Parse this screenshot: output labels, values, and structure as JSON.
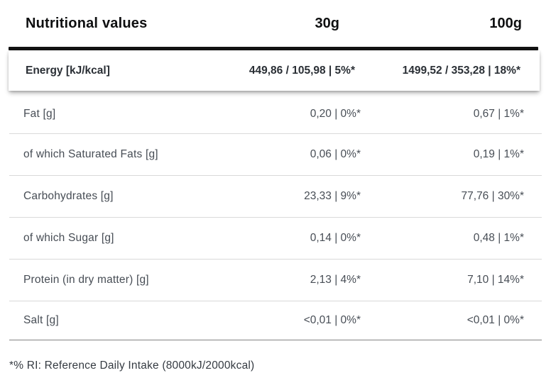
{
  "table": {
    "header": {
      "label": "Nutritional values",
      "serving_30": "30g",
      "serving_100": "100g"
    },
    "energy_row": {
      "label": "Energy [kJ/kcal]",
      "v30": "449,86 / 105,98 | 5%*",
      "v100": "1499,52 / 353,28 | 18%*"
    },
    "rows": [
      {
        "label": "Fat [g]",
        "v30": "0,20 | 0%*",
        "v100": "0,67 | 1%*"
      },
      {
        "label": "of which Saturated Fats [g]",
        "v30": "0,06 | 0%*",
        "v100": "0,19 | 1%*"
      },
      {
        "label": "Carbohydrates [g]",
        "v30": "23,33 | 9%*",
        "v100": "77,76 | 30%*"
      },
      {
        "label": "of which Sugar [g]",
        "v30": "0,14 | 0%*",
        "v100": "0,48 | 1%*"
      },
      {
        "label": "Protein (in dry matter) [g]",
        "v30": "2,13 | 4%*",
        "v100": "7,10 | 14%*"
      },
      {
        "label": "Salt [g]",
        "v30": "<0,01 | 0%*",
        "v100": "<0,01 | 0%*"
      }
    ],
    "footnote": "*% RI: Reference Daily Intake (8000kJ/2000kcal)"
  },
  "colors": {
    "heavy_rule": "#121212",
    "row_divider": "#d9d9d9",
    "bottom_rule": "#838383",
    "header_text": "#0e0f10",
    "energy_text": "#2a2f35",
    "row_text": "#474d55",
    "card_background": "#ffffff"
  }
}
